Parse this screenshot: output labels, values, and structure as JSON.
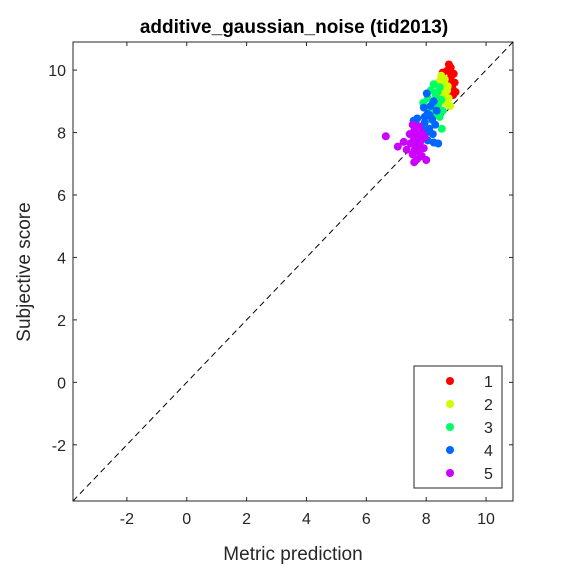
{
  "chart_data": {
    "type": "scatter",
    "title": "additive_gaussian_noise (tid2013)",
    "xlabel": "Metric prediction",
    "ylabel": "Subjective score",
    "xlim": [
      -3.8,
      10.9
    ],
    "ylim": [
      -3.8,
      10.9
    ],
    "xticks": [
      -2,
      0,
      2,
      4,
      6,
      8,
      10
    ],
    "yticks": [
      -2,
      0,
      2,
      4,
      6,
      8,
      10
    ],
    "grid": false,
    "legend_position": "bottom-right",
    "reference_line": "y = x (dashed)",
    "series": [
      {
        "name": "1",
        "color": "#ff0000",
        "points": [
          [
            8.76,
            10.18
          ],
          [
            8.82,
            10.08
          ],
          [
            8.7,
            9.98
          ],
          [
            8.92,
            9.88
          ],
          [
            8.55,
            9.92
          ],
          [
            8.8,
            9.72
          ],
          [
            8.95,
            9.6
          ],
          [
            8.72,
            9.55
          ],
          [
            8.88,
            9.42
          ],
          [
            8.65,
            9.35
          ],
          [
            8.9,
            9.2
          ],
          [
            8.6,
            9.5
          ],
          [
            8.78,
            9.3
          ],
          [
            8.52,
            9.75
          ],
          [
            8.68,
            9.65
          ],
          [
            8.98,
            9.3
          ],
          [
            8.84,
            9.82
          ]
        ]
      },
      {
        "name": "2",
        "color": "#ccff00",
        "points": [
          [
            8.5,
            9.82
          ],
          [
            8.62,
            9.7
          ],
          [
            8.42,
            9.62
          ],
          [
            8.58,
            9.5
          ],
          [
            8.35,
            9.45
          ],
          [
            8.7,
            9.35
          ],
          [
            8.45,
            9.3
          ],
          [
            8.6,
            9.2
          ],
          [
            8.75,
            9.1
          ],
          [
            8.4,
            9.1
          ],
          [
            8.65,
            8.95
          ],
          [
            8.8,
            8.85
          ],
          [
            8.55,
            9.0
          ],
          [
            8.48,
            9.58
          ],
          [
            8.72,
            9.48
          ]
        ]
      },
      {
        "name": "3",
        "color": "#00ff66",
        "points": [
          [
            8.25,
            9.55
          ],
          [
            8.45,
            9.45
          ],
          [
            8.15,
            9.35
          ],
          [
            8.32,
            9.2
          ],
          [
            8.05,
            9.1
          ],
          [
            8.5,
            9.05
          ],
          [
            8.22,
            8.95
          ],
          [
            7.9,
            8.95
          ],
          [
            8.4,
            8.88
          ],
          [
            8.1,
            8.75
          ],
          [
            8.55,
            8.7
          ],
          [
            8.3,
            8.6
          ],
          [
            8.05,
            8.55
          ],
          [
            8.45,
            8.5
          ],
          [
            8.2,
            8.4
          ],
          [
            8.52,
            8.12
          ],
          [
            8.38,
            9.3
          ]
        ]
      },
      {
        "name": "4",
        "color": "#0066ff",
        "points": [
          [
            8.02,
            9.25
          ],
          [
            8.25,
            9.0
          ],
          [
            8.15,
            8.85
          ],
          [
            7.92,
            8.8
          ],
          [
            8.35,
            8.7
          ],
          [
            8.05,
            8.6
          ],
          [
            7.7,
            8.45
          ],
          [
            8.2,
            8.42
          ],
          [
            7.95,
            8.32
          ],
          [
            8.3,
            8.25
          ],
          [
            7.85,
            8.15
          ],
          [
            8.1,
            8.12
          ],
          [
            7.58,
            8.38
          ],
          [
            8.0,
            8.0
          ],
          [
            8.22,
            7.95
          ],
          [
            7.8,
            7.85
          ],
          [
            8.05,
            7.75
          ],
          [
            8.25,
            7.68
          ],
          [
            8.4,
            7.65
          ],
          [
            7.95,
            8.5
          ],
          [
            8.12,
            8.55
          ]
        ]
      },
      {
        "name": "5",
        "color": "#cc00ff",
        "points": [
          [
            7.55,
            8.25
          ],
          [
            7.75,
            8.2
          ],
          [
            7.6,
            8.05
          ],
          [
            7.85,
            8.0
          ],
          [
            7.45,
            7.95
          ],
          [
            7.68,
            7.88
          ],
          [
            7.95,
            7.85
          ],
          [
            7.58,
            7.75
          ],
          [
            7.8,
            7.7
          ],
          [
            7.48,
            7.65
          ],
          [
            7.7,
            7.55
          ],
          [
            7.92,
            7.5
          ],
          [
            7.62,
            7.45
          ],
          [
            7.75,
            7.4
          ],
          [
            7.55,
            7.3
          ],
          [
            7.85,
            7.25
          ],
          [
            7.7,
            7.15
          ],
          [
            8.0,
            7.12
          ],
          [
            7.6,
            7.05
          ],
          [
            7.25,
            7.7
          ],
          [
            7.05,
            7.55
          ],
          [
            6.65,
            7.88
          ],
          [
            7.35,
            7.45
          ]
        ]
      }
    ]
  }
}
